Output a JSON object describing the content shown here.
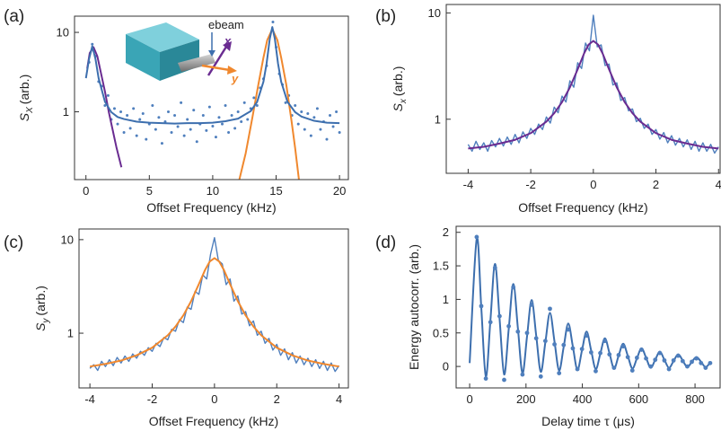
{
  "chart_data": [
    {
      "type": "line",
      "panel_label": "(a)",
      "x_label": "Offset Frequency (kHz)",
      "y_label": {
        "symbol": "S",
        "subscript": "X",
        "unit": "(arb.)"
      },
      "annotations": [
        "ebeam",
        "x",
        "y"
      ],
      "xlim": [
        -0.9,
        20.7
      ],
      "xticks": [
        0,
        5,
        10,
        15,
        20
      ],
      "ylim": [
        0.14,
        16
      ],
      "yticks": [
        1,
        10
      ],
      "yscale": "log",
      "series": [
        {
          "mode": "markers",
          "color": "#4f7fbd",
          "x": [
            0.25,
            0.5,
            0.75,
            1,
            1.25,
            1.5,
            1.75,
            2,
            2.25,
            2.5,
            2.75,
            3,
            3.25,
            3.5,
            3.75,
            4,
            4.25,
            4.5,
            4.75,
            5,
            5.25,
            5.5,
            5.75,
            6,
            6.25,
            6.5,
            6.75,
            7,
            7.25,
            7.5,
            7.75,
            8,
            8.25,
            8.5,
            8.75,
            9,
            9.25,
            9.5,
            9.75,
            10,
            10.25,
            10.5,
            10.75,
            11,
            11.25,
            11.5,
            11.75,
            12,
            12.25,
            12.5,
            12.75,
            13,
            13.25,
            13.5,
            13.75,
            14,
            14.25,
            14.5,
            14.75,
            15,
            15.25,
            15.5,
            15.75,
            16,
            16.25,
            16.5,
            16.75,
            17,
            17.25,
            17.5,
            17.75,
            18,
            18.25,
            18.5,
            18.75,
            19,
            19.25,
            19.5,
            19.75,
            20
          ],
          "values": [
            4.2,
            7.1,
            5.0,
            2.4,
            2.1,
            1.2,
            1.6,
            0.8,
            1.1,
            0.7,
            1.0,
            0.55,
            0.9,
            0.62,
            1.1,
            0.5,
            0.8,
            0.95,
            0.45,
            0.7,
            1.2,
            0.6,
            0.85,
            0.4,
            0.75,
            1.0,
            0.55,
            0.9,
            0.65,
            1.3,
            0.5,
            0.8,
            0.6,
            1.05,
            0.42,
            0.7,
            0.9,
            0.58,
            1.15,
            0.66,
            0.48,
            0.85,
            0.7,
            1.2,
            0.55,
            0.9,
            0.62,
            1.0,
            0.75,
            1.3,
            0.8,
            1.1,
            1.5,
            1.2,
            2.0,
            2.6,
            3.8,
            9.0,
            13.5,
            6.5,
            3.0,
            2.2,
            1.3,
            1.6,
            0.9,
            1.2,
            0.7,
            1.0,
            0.6,
            0.95,
            0.5,
            0.85,
            1.1,
            0.6,
            0.75,
            0.45,
            0.9,
            0.65,
            1.0,
            0.55
          ]
        },
        {
          "mode": "lines",
          "color": "#6a2c91",
          "x": [
            0.1,
            0.3,
            0.6,
            0.9,
            1.2,
            1.5,
            1.8,
            2.1,
            2.4,
            2.8
          ],
          "values": [
            3.5,
            5.5,
            6.5,
            5.0,
            3.0,
            1.8,
            1.0,
            0.6,
            0.36,
            0.2
          ]
        },
        {
          "mode": "lines",
          "color": "#f0882e",
          "x": [
            12.1,
            12.6,
            13.1,
            13.6,
            14.0,
            14.3,
            14.7,
            15.1,
            15.4,
            15.8,
            16.2,
            16.5,
            16.8
          ],
          "values": [
            0.14,
            0.3,
            0.8,
            2.2,
            4.8,
            8,
            11,
            8,
            4.8,
            2.2,
            0.8,
            0.35,
            0.14
          ]
        },
        {
          "mode": "lines",
          "color": "#3d6fae",
          "x": [
            0,
            0.25,
            0.5,
            0.75,
            1,
            1.5,
            2,
            2.5,
            3,
            4,
            5,
            6,
            7,
            8,
            9,
            10,
            11,
            12,
            13,
            13.5,
            14,
            14.25,
            14.5,
            14.7,
            14.9,
            15.15,
            15.4,
            15.9,
            16.5,
            17,
            18,
            19,
            20
          ],
          "values": [
            2.65,
            4.65,
            6.68,
            4.65,
            2.65,
            1.34,
            0.99,
            0.86,
            0.81,
            0.75,
            0.73,
            0.72,
            0.71,
            0.72,
            0.72,
            0.73,
            0.76,
            0.82,
            1.02,
            1.33,
            2.39,
            4.06,
            8.3,
            11.68,
            8.3,
            4.06,
            2.39,
            1.33,
            0.99,
            0.87,
            0.77,
            0.73,
            0.72
          ]
        }
      ]
    },
    {
      "type": "line",
      "panel_label": "(b)",
      "x_label": "Offset Frequency (kHz)",
      "y_label": {
        "symbol": "S",
        "subscript": "x",
        "unit": "(arb.)"
      },
      "xlim": [
        -4.7,
        4.05
      ],
      "xticks": [
        -4,
        -2,
        0,
        2,
        4
      ],
      "ylim": [
        0.31,
        12
      ],
      "yticks": [
        1,
        10
      ],
      "yscale": "log",
      "series": [
        {
          "mode": "lines",
          "color": "#4f7fbd",
          "x": [
            -4,
            -3.875,
            -3.75,
            -3.625,
            -3.5,
            -3.375,
            -3.25,
            -3.125,
            -3,
            -2.875,
            -2.75,
            -2.625,
            -2.5,
            -2.375,
            -2.25,
            -2.125,
            -2,
            -1.875,
            -1.75,
            -1.625,
            -1.5,
            -1.375,
            -1.25,
            -1.125,
            -1,
            -0.875,
            -0.75,
            -0.625,
            -0.5,
            -0.375,
            -0.25,
            -0.125,
            0,
            0.125,
            0.25,
            0.375,
            0.5,
            0.625,
            0.75,
            0.875,
            1,
            1.125,
            1.25,
            1.375,
            1.5,
            1.625,
            1.75,
            1.875,
            2,
            2.125,
            2.25,
            2.375,
            2.5,
            2.625,
            2.75,
            2.875,
            3,
            3.125,
            3.25,
            3.375,
            3.5,
            3.625,
            3.75,
            3.875,
            4
          ],
          "values": [
            0.58,
            0.5,
            0.62,
            0.52,
            0.6,
            0.5,
            0.63,
            0.55,
            0.66,
            0.56,
            0.68,
            0.58,
            0.72,
            0.6,
            0.76,
            0.66,
            0.82,
            0.72,
            0.9,
            0.8,
            1.05,
            0.92,
            1.3,
            1.15,
            1.65,
            1.45,
            2.3,
            2.0,
            3.4,
            3.0,
            5.2,
            4.4,
            9.5,
            4.8,
            5.0,
            3.2,
            3.3,
            2.1,
            2.2,
            1.5,
            1.6,
            1.2,
            1.25,
            0.95,
            1.02,
            0.82,
            0.9,
            0.72,
            0.8,
            0.65,
            0.75,
            0.6,
            0.7,
            0.57,
            0.66,
            0.55,
            0.64,
            0.52,
            0.62,
            0.5,
            0.6,
            0.5,
            0.58,
            0.48,
            0.55
          ]
        },
        {
          "mode": "lines",
          "color": "#6a2c91",
          "x": [
            -4,
            -3.5,
            -3,
            -2.5,
            -2,
            -1.5,
            -1.25,
            -1,
            -0.75,
            -0.5,
            -0.3,
            -0.15,
            0,
            0.15,
            0.3,
            0.5,
            0.75,
            1,
            1.25,
            1.5,
            2,
            2.5,
            3,
            3.5,
            4
          ],
          "values": [
            0.53,
            0.55,
            0.59,
            0.64,
            0.74,
            0.95,
            1.14,
            1.45,
            1.99,
            2.95,
            4.13,
            5.04,
            5.45,
            5.04,
            4.13,
            2.95,
            1.99,
            1.45,
            1.14,
            0.95,
            0.74,
            0.64,
            0.59,
            0.55,
            0.53
          ]
        }
      ]
    },
    {
      "type": "line",
      "panel_label": "(c)",
      "x_label": "Offset Frequency (kHz)",
      "y_label": {
        "symbol": "S",
        "subscript": "y",
        "unit": "(arb.)"
      },
      "xlim": [
        -4.35,
        4.3
      ],
      "xticks": [
        -4,
        -2,
        0,
        2,
        4
      ],
      "ylim": [
        0.26,
        13
      ],
      "yticks": [
        1,
        10
      ],
      "yscale": "log",
      "series": [
        {
          "mode": "lines",
          "color": "#4f7fbd",
          "x": [
            -4,
            -3.875,
            -3.75,
            -3.625,
            -3.5,
            -3.375,
            -3.25,
            -3.125,
            -3,
            -2.875,
            -2.75,
            -2.625,
            -2.5,
            -2.375,
            -2.25,
            -2.125,
            -2,
            -1.875,
            -1.75,
            -1.625,
            -1.5,
            -1.375,
            -1.25,
            -1.125,
            -1,
            -0.875,
            -0.75,
            -0.625,
            -0.5,
            -0.375,
            -0.25,
            -0.125,
            0,
            0.125,
            0.25,
            0.375,
            0.5,
            0.625,
            0.75,
            0.875,
            1,
            1.125,
            1.25,
            1.375,
            1.5,
            1.625,
            1.75,
            1.875,
            2,
            2.125,
            2.25,
            2.375,
            2.5,
            2.625,
            2.75,
            2.875,
            3,
            3.125,
            3.25,
            3.375,
            3.5,
            3.625,
            3.75,
            3.875,
            4
          ],
          "values": [
            0.42,
            0.46,
            0.4,
            0.5,
            0.44,
            0.52,
            0.45,
            0.55,
            0.48,
            0.57,
            0.5,
            0.6,
            0.54,
            0.64,
            0.58,
            0.7,
            0.64,
            0.78,
            0.72,
            0.9,
            0.85,
            1.1,
            1.05,
            1.4,
            1.3,
            1.9,
            1.8,
            2.8,
            2.6,
            4.2,
            3.8,
            7.0,
            10.5,
            6.0,
            5.5,
            3.3,
            3.8,
            2.2,
            2.5,
            1.6,
            1.7,
            1.2,
            1.35,
            0.95,
            1.05,
            0.78,
            0.88,
            0.66,
            0.76,
            0.58,
            0.68,
            0.52,
            0.62,
            0.48,
            0.57,
            0.46,
            0.54,
            0.44,
            0.52,
            0.42,
            0.5,
            0.4,
            0.48,
            0.39,
            0.45
          ]
        },
        {
          "mode": "lines",
          "color": "#f0882e",
          "x": [
            -4,
            -3.5,
            -3,
            -2.5,
            -2,
            -1.5,
            -1.25,
            -1,
            -0.75,
            -0.5,
            -0.3,
            -0.15,
            0,
            0.15,
            0.3,
            0.5,
            0.75,
            1,
            1.25,
            1.5,
            2,
            2.5,
            3,
            3.5,
            4
          ],
          "values": [
            0.44,
            0.47,
            0.51,
            0.58,
            0.7,
            0.95,
            1.18,
            1.55,
            2.2,
            3.35,
            4.76,
            5.85,
            6.35,
            5.85,
            4.76,
            3.35,
            2.2,
            1.55,
            1.18,
            0.95,
            0.7,
            0.58,
            0.51,
            0.47,
            0.44
          ]
        }
      ]
    },
    {
      "type": "line",
      "panel_label": "(d)",
      "x_label": "Delay time τ (μs)",
      "y_label": {
        "symbol": "Energy autocorr. (arb.)"
      },
      "xlim": [
        -48,
        889
      ],
      "xticks": [
        0,
        200,
        400,
        600,
        800
      ],
      "ylim": [
        -0.32,
        2.09
      ],
      "yticks": [
        0,
        0.5,
        1,
        1.5,
        2
      ],
      "yscale": "linear",
      "smooth": true,
      "series": [
        {
          "mode": "lines",
          "color": "#3d6fae",
          "x": [
            0,
            25,
            41.25,
            57.5,
            73.75,
            90,
            106.25,
            122.5,
            138.75,
            155,
            171.25,
            187.5,
            203.75,
            220,
            236.25,
            252.5,
            268.75,
            285,
            301.25,
            317.5,
            333.75,
            350,
            366.25,
            382.5,
            398.75,
            415,
            431.25,
            447.5,
            463.75,
            480,
            496.25,
            512.5,
            528.75,
            545,
            561.25,
            577.5,
            593.75,
            610,
            626.25,
            642.5,
            658.75,
            675,
            691.25,
            707.5,
            723.75,
            740,
            756.25,
            772.5,
            788.75,
            805,
            821.25,
            837.5,
            853.75
          ],
          "values": [
            0.05,
            1.9,
            0.88,
            -0.15,
            0.69,
            1.53,
            0.71,
            -0.12,
            0.56,
            1.23,
            0.57,
            -0.1,
            0.45,
            0.99,
            0.46,
            -0.08,
            0.36,
            0.8,
            0.37,
            -0.06,
            0.29,
            0.64,
            0.3,
            -0.05,
            0.24,
            0.52,
            0.24,
            -0.04,
            0.19,
            0.42,
            0.2,
            -0.03,
            0.16,
            0.34,
            0.16,
            -0.03,
            0.12,
            0.27,
            0.13,
            -0.02,
            0.1,
            0.22,
            0.1,
            -0.02,
            0.08,
            0.18,
            0.09,
            -0.01,
            0.07,
            0.14,
            0.07,
            -0.01,
            0.06
          ]
        },
        {
          "mode": "markers",
          "color": "#4f7fbd",
          "x": [
            25,
            41.25,
            57.5,
            73.75,
            90,
            106.25,
            122.5,
            138.75,
            155,
            171.25,
            187.5,
            203.75,
            220,
            236.25,
            252.5,
            268.75,
            285,
            301.25,
            317.5,
            333.75,
            350,
            366.25,
            382.5,
            398.75,
            415,
            431.25,
            447.5,
            463.75,
            480,
            496.25,
            512.5,
            528.75,
            545,
            561.25,
            577.5,
            593.75,
            610,
            626.25,
            642.5,
            658.75,
            675,
            691.25,
            707.5,
            723.75,
            740,
            756.25,
            772.5,
            788.75,
            805,
            821.25,
            837.5,
            853.75
          ],
          "values": [
            1.93,
            0.9,
            -0.18,
            0.66,
            1.47,
            0.75,
            -0.2,
            0.6,
            1.18,
            0.52,
            -0.12,
            0.5,
            0.92,
            0.42,
            -0.15,
            0.38,
            0.86,
            0.33,
            -0.1,
            0.32,
            0.55,
            0.27,
            -0.04,
            0.26,
            0.46,
            0.21,
            -0.07,
            0.2,
            0.38,
            0.18,
            -0.02,
            0.17,
            0.3,
            0.14,
            -0.06,
            0.13,
            0.25,
            0.12,
            0.0,
            0.1,
            0.2,
            0.09,
            -0.04,
            0.09,
            0.16,
            0.08,
            0.0,
            0.07,
            0.12,
            0.05,
            -0.02,
            0.05
          ]
        }
      ]
    }
  ]
}
